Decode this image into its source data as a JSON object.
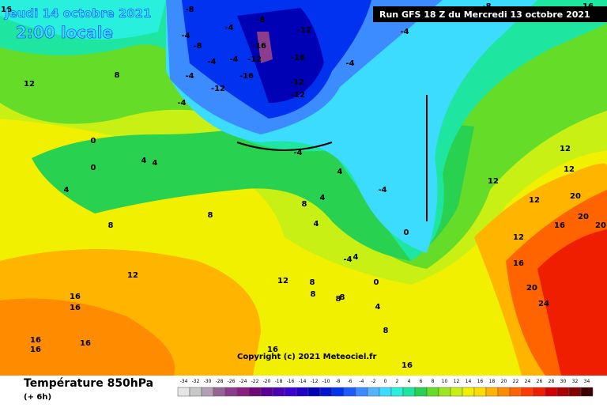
{
  "header": {
    "date": "Jeudi 14 octobre 2021",
    "time": "2:00 locale",
    "run": "Run GFS 18 Z du Mercredi 13 octobre 2021"
  },
  "footer": {
    "title": "Température 850hPa",
    "lead": "(+ 6h)",
    "copyright": "Copyright (c) 2021 Meteociel.fr"
  },
  "colorbar": {
    "ticks": [
      -34,
      -32,
      -30,
      -28,
      -26,
      -24,
      -22,
      -20,
      -18,
      -16,
      -14,
      -12,
      -10,
      -8,
      -6,
      -4,
      -2,
      0,
      2,
      4,
      6,
      8,
      10,
      12,
      14,
      16,
      18,
      20,
      22,
      24,
      26,
      28,
      30,
      32,
      34
    ],
    "colors": [
      "#e6e6e6",
      "#c8c8c8",
      "#b4a0b4",
      "#966496",
      "#8c3c8c",
      "#8a1e82",
      "#6e0a78",
      "#5a0096",
      "#4b00b4",
      "#3c00d2",
      "#1e00c8",
      "#0000b4",
      "#0014d2",
      "#0032f0",
      "#1e5aff",
      "#3c8cff",
      "#50b4ff",
      "#3cdcff",
      "#28f0dc",
      "#1ee6a0",
      "#28d250",
      "#64dc28",
      "#a0e61e",
      "#c8f014",
      "#f0f000",
      "#ffdc00",
      "#ffb400",
      "#ff8c00",
      "#ff6400",
      "#ff3c00",
      "#f01e00",
      "#d20000",
      "#aa0000",
      "#820000",
      "#3c0000"
    ]
  },
  "contour_labels": [
    16,
    -8,
    -8,
    -12,
    -4,
    -4,
    -8,
    -4,
    -16,
    -12,
    -16,
    -12,
    -12,
    -4,
    -4,
    -4,
    -12,
    -16,
    -4,
    -4,
    -8,
    12,
    8,
    0,
    0,
    4,
    4,
    4,
    -4,
    4,
    -4,
    0,
    8,
    8,
    8,
    4,
    4,
    12,
    12,
    16,
    16,
    16,
    16,
    16,
    16,
    16,
    12,
    12,
    12,
    16,
    16,
    20,
    24,
    20,
    20,
    20,
    12,
    12,
    4,
    8,
    0,
    4,
    -4,
    8,
    8,
    8,
    8,
    16
  ]
}
